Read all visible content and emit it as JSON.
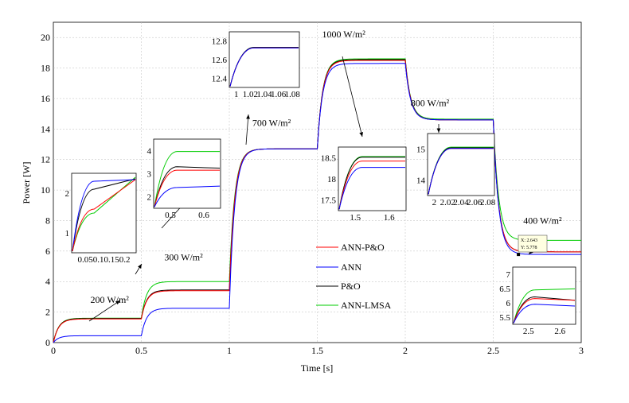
{
  "chart_data": {
    "type": "line",
    "title": "",
    "xlabel": "Time [s]",
    "ylabel": "Power [W]",
    "xlim": [
      0,
      3
    ],
    "ylim": [
      0,
      21
    ],
    "xticks": [
      0,
      0.5,
      1,
      1.5,
      2,
      2.5,
      3
    ],
    "xtick_labels": [
      "0",
      "0.5",
      "1",
      "1.5",
      "2",
      "2.5",
      "3"
    ],
    "yticks": [
      0,
      2,
      4,
      6,
      8,
      10,
      12,
      14,
      16,
      18,
      20
    ],
    "ytick_labels": [
      "0",
      "2",
      "4",
      "6",
      "8",
      "10",
      "12",
      "14",
      "16",
      "18",
      "20"
    ],
    "grid": true,
    "legend_position": "center-bottom",
    "series": [
      {
        "name": "ANN-P&O",
        "color": "#ff0000",
        "segments": [
          {
            "t0": 0,
            "t1": 0.5,
            "steady": 1.55,
            "start": 0.0
          },
          {
            "t0": 0.5,
            "t1": 1.0,
            "steady": 3.4,
            "start": 1.55
          },
          {
            "t0": 1.0,
            "t1": 1.5,
            "steady": 12.7,
            "start": 3.4
          },
          {
            "t0": 1.5,
            "t1": 2.0,
            "steady": 18.5,
            "start": 12.7
          },
          {
            "t0": 2.0,
            "t1": 2.5,
            "steady": 14.6,
            "start": 18.5
          },
          {
            "t0": 2.5,
            "t1": 3.0,
            "steady": 5.95,
            "start": 14.6
          }
        ]
      },
      {
        "name": "ANN",
        "color": "#0000ff",
        "segments": [
          {
            "t0": 0,
            "t1": 0.5,
            "steady": 0.45,
            "start": 0.0
          },
          {
            "t0": 0.5,
            "t1": 1.0,
            "steady": 2.25,
            "start": 0.45
          },
          {
            "t0": 1.0,
            "t1": 1.5,
            "steady": 12.7,
            "start": 2.25
          },
          {
            "t0": 1.5,
            "t1": 2.0,
            "steady": 18.3,
            "start": 12.7
          },
          {
            "t0": 2.0,
            "t1": 2.5,
            "steady": 14.6,
            "start": 18.3
          },
          {
            "t0": 2.5,
            "t1": 3.0,
            "steady": 5.78,
            "start": 14.6
          }
        ]
      },
      {
        "name": "P&O",
        "color": "#000000",
        "segments": [
          {
            "t0": 0,
            "t1": 0.5,
            "steady": 1.58,
            "start": 0.0
          },
          {
            "t0": 0.5,
            "t1": 1.0,
            "steady": 3.45,
            "start": 1.58
          },
          {
            "t0": 1.0,
            "t1": 1.5,
            "steady": 12.7,
            "start": 3.45
          },
          {
            "t0": 1.5,
            "t1": 2.0,
            "steady": 18.55,
            "start": 12.7
          },
          {
            "t0": 2.0,
            "t1": 2.5,
            "steady": 14.6,
            "start": 18.55
          },
          {
            "t0": 2.5,
            "t1": 3.0,
            "steady": 5.95,
            "start": 14.6
          }
        ]
      },
      {
        "name": "ANN-LMSA",
        "color": "#00cc00",
        "segments": [
          {
            "t0": 0,
            "t1": 0.5,
            "steady": 1.6,
            "start": 0.0
          },
          {
            "t0": 0.5,
            "t1": 1.0,
            "steady": 4.0,
            "start": 1.6
          },
          {
            "t0": 1.0,
            "t1": 1.5,
            "steady": 12.7,
            "start": 4.0
          },
          {
            "t0": 1.5,
            "t1": 2.0,
            "steady": 18.6,
            "start": 12.7
          },
          {
            "t0": 2.0,
            "t1": 2.5,
            "steady": 14.65,
            "start": 18.6
          },
          {
            "t0": 2.5,
            "t1": 3.0,
            "steady": 6.7,
            "start": 14.65
          }
        ]
      }
    ],
    "annotations": [
      {
        "text": "200 W/m²",
        "x": 0.32,
        "y": 2.6
      },
      {
        "text": "300 W/m²",
        "x": 0.74,
        "y": 5.4
      },
      {
        "text": "700 W/m²",
        "x": 1.24,
        "y": 14.2
      },
      {
        "text": "1000 W/m²",
        "x": 1.65,
        "y": 20.0
      },
      {
        "text": "800 W/m²",
        "x": 2.14,
        "y": 15.5
      },
      {
        "text": "400 W/m²",
        "x": 2.78,
        "y": 7.8
      }
    ],
    "datatip": {
      "x_label": "X: 2.643",
      "y_label": "Y: 5.778",
      "x": 2.643,
      "y": 5.778
    },
    "insets": [
      {
        "name": "inset-200",
        "xticks": [
          "0.050.10.150.2"
        ],
        "yticks": [
          "1",
          "2"
        ]
      },
      {
        "name": "inset-300",
        "xticks": [
          "0.5",
          "0.6"
        ],
        "yticks": [
          "2",
          "3",
          "4"
        ]
      },
      {
        "name": "inset-700",
        "xticks": [
          "1",
          "1.02",
          "1.04",
          "1.06",
          "1.08"
        ],
        "yticks": [
          "12.4",
          "12.6",
          "12.8"
        ]
      },
      {
        "name": "inset-1000",
        "xticks": [
          "1.5",
          "1.6"
        ],
        "yticks": [
          "17.5",
          "18",
          "18.5"
        ]
      },
      {
        "name": "inset-800",
        "xticks": [
          "2",
          "2.02",
          "2.04",
          "2.06",
          "2.08"
        ],
        "yticks": [
          "14",
          "15"
        ]
      },
      {
        "name": "inset-400",
        "xticks": [
          "2.5",
          "2.6"
        ],
        "yticks": [
          "5.5",
          "6",
          "6.5",
          "7"
        ]
      }
    ]
  }
}
